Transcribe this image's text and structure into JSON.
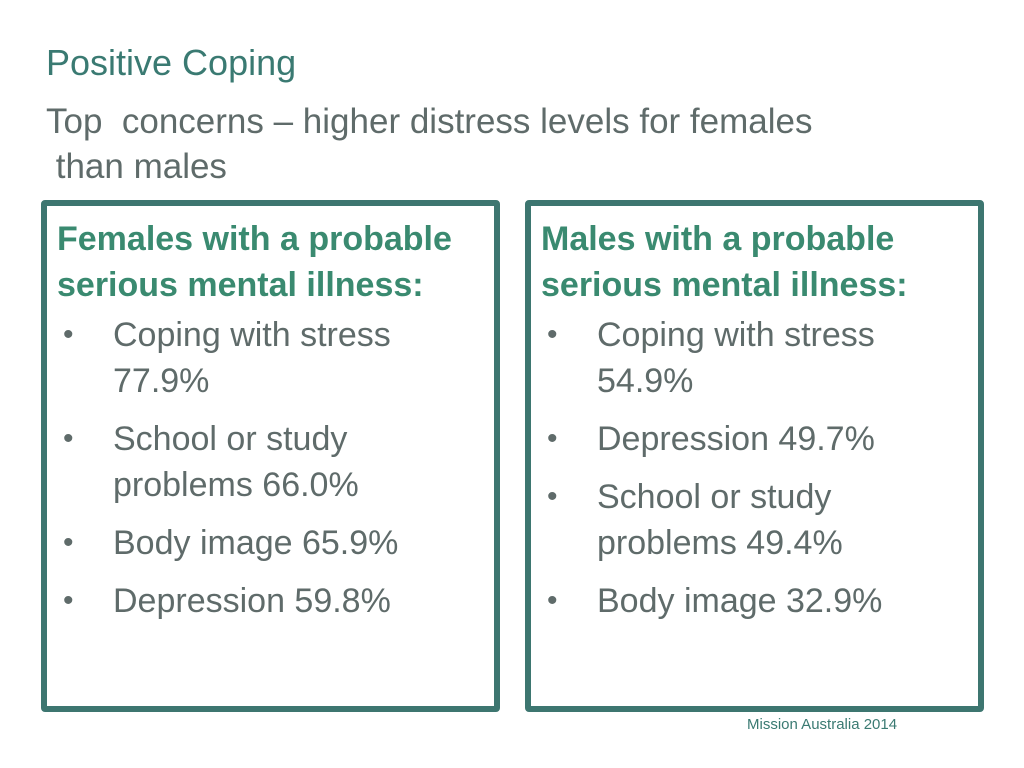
{
  "slide": {
    "title": "Positive Coping",
    "subtitle": "Top  concerns – higher distress levels for females\n than males",
    "footer": "Mission Australia 2014"
  },
  "female_box": {
    "heading": "Females with a probable serious mental illness:",
    "items": [
      {
        "text": "Coping with stress 77.9%"
      },
      {
        "text": "School or study problems 66.0%"
      },
      {
        "text": "Body image 65.9%"
      },
      {
        "text": "Depression 59.8%"
      }
    ]
  },
  "male_box": {
    "heading": "Males with a probable serious mental illness:",
    "items": [
      {
        "text": "Coping with stress 54.9%"
      },
      {
        "text": "Depression  49.7%"
      },
      {
        "text": "School or study problems 49.4%"
      },
      {
        "text": "Body image 32.9%"
      }
    ]
  },
  "colors": {
    "accent_teal": "#3a7a72",
    "box_border": "#3d7670",
    "heading_green": "#3a8a70",
    "body_text": "#5f6b6a"
  }
}
